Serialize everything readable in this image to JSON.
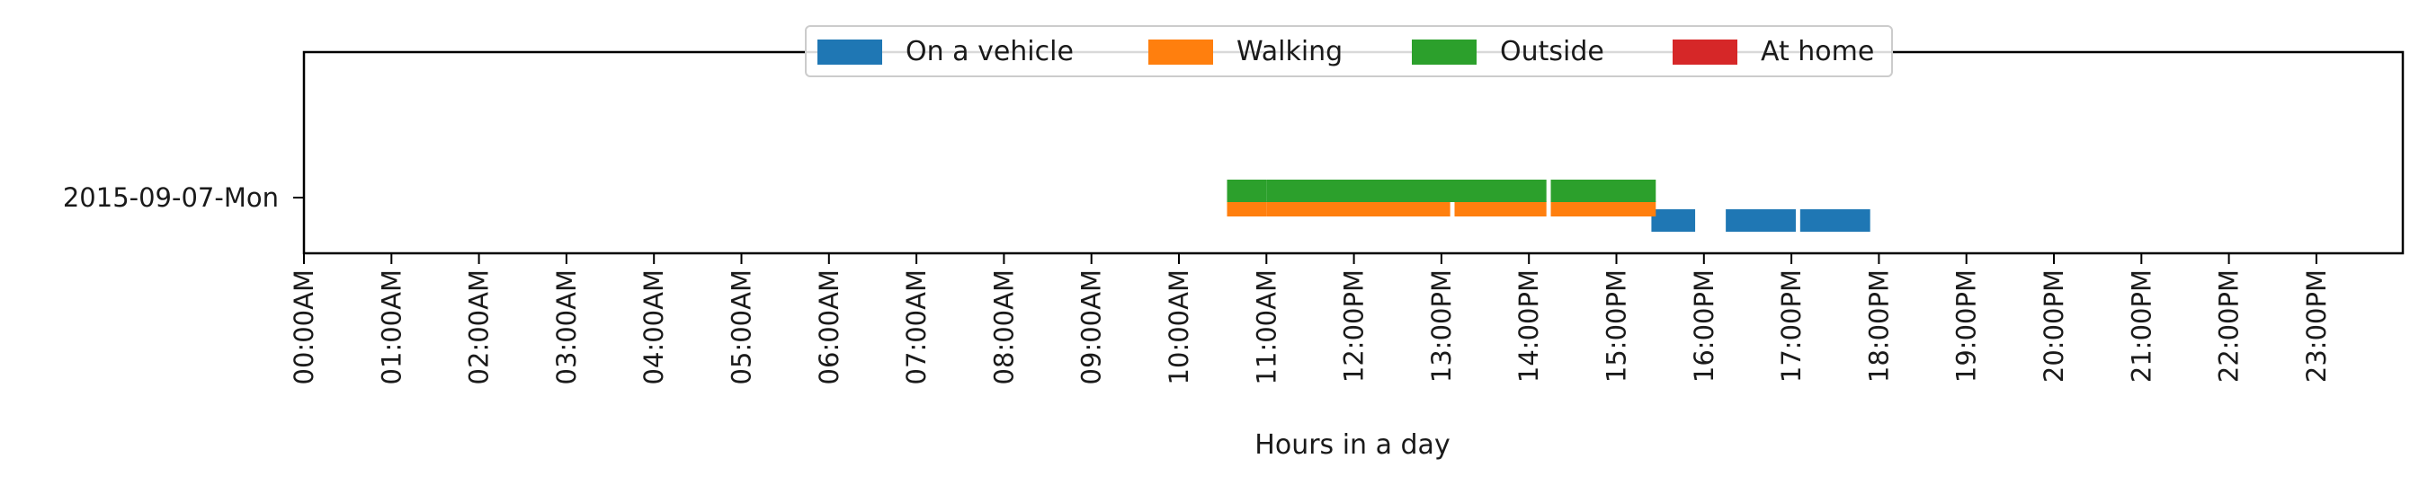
{
  "chart_data": {
    "type": "timeline",
    "xlabel": "Hours in a day",
    "xlim": [
      0,
      24
    ],
    "ticks": [
      "00:00AM",
      "01:00AM",
      "02:00AM",
      "03:00AM",
      "04:00AM",
      "05:00AM",
      "06:00AM",
      "07:00AM",
      "08:00AM",
      "09:00AM",
      "10:00AM",
      "11:00AM",
      "12:00PM",
      "13:00PM",
      "14:00PM",
      "15:00PM",
      "16:00PM",
      "17:00PM",
      "18:00PM",
      "19:00PM",
      "20:00PM",
      "21:00PM",
      "22:00PM",
      "23:00PM"
    ],
    "y_categories": [
      "2015-09-07-Mon"
    ],
    "legend_position": "top-center",
    "series": [
      {
        "name": "On a vehicle",
        "color": "#1f77b4",
        "intervals": [
          [
            15.4,
            15.9
          ],
          [
            16.25,
            17.05
          ],
          [
            17.1,
            17.9
          ]
        ]
      },
      {
        "name": "Walking",
        "color": "#ff7f0e",
        "intervals": [
          [
            10.55,
            11.0
          ],
          [
            11.0,
            13.1
          ],
          [
            13.15,
            14.2
          ],
          [
            14.25,
            15.45
          ]
        ]
      },
      {
        "name": "Outside",
        "color": "#2ca02c",
        "intervals": [
          [
            10.55,
            11.0
          ],
          [
            11.0,
            14.2
          ],
          [
            14.25,
            15.45
          ]
        ]
      },
      {
        "name": "At home",
        "color": "#d62728",
        "intervals": []
      }
    ]
  }
}
